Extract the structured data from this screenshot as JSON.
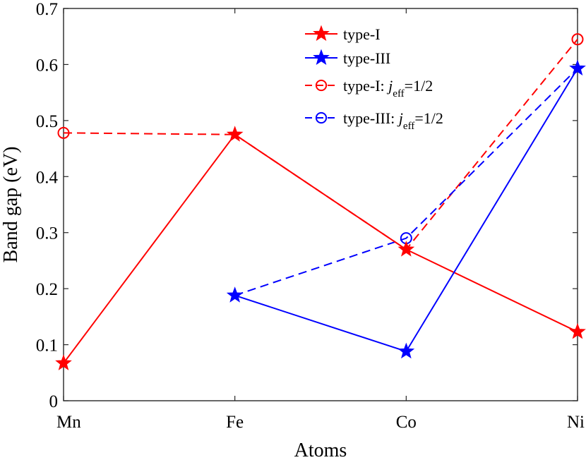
{
  "chart_data": {
    "type": "line",
    "categories": [
      "Mn",
      "Fe",
      "Co",
      "Ni"
    ],
    "xlabel": "Atoms",
    "ylabel": "Band gap (eV)",
    "ylim": [
      0,
      0.7
    ],
    "yticks": [
      "0",
      "0.1",
      "0.2",
      "0.3",
      "0.4",
      "0.5",
      "0.6",
      "0.7"
    ],
    "grid": false,
    "legend_position": "top-right",
    "series": [
      {
        "name": "type-I",
        "x": [
          "Mn",
          "Fe",
          "Co",
          "Ni"
        ],
        "values": [
          0.067,
          0.475,
          0.27,
          0.123
        ],
        "color": "#ff0000",
        "marker": "star",
        "line": "solid"
      },
      {
        "name": "type-III",
        "x": [
          "Fe",
          "Co",
          "Ni"
        ],
        "values": [
          0.188,
          0.088,
          0.593
        ],
        "color": "#0000ff",
        "marker": "star",
        "line": "solid"
      },
      {
        "name": "type-I: j_eff=1/2",
        "label_parts": [
          "type-I: ",
          "j",
          "eff",
          "=1/2"
        ],
        "x": [
          "Mn",
          "Fe",
          "Co",
          "Ni"
        ],
        "values": [
          0.478,
          0.475,
          0.27,
          0.645
        ],
        "color": "#ff0000",
        "marker": "circle",
        "line": "dashed",
        "marker_points": [
          0,
          3
        ]
      },
      {
        "name": "type-III: j_eff=1/2",
        "label_parts": [
          "type-III: ",
          "j",
          "eff",
          "=1/2"
        ],
        "x": [
          "Fe",
          "Co",
          "Ni"
        ],
        "values": [
          0.188,
          0.29,
          0.593
        ],
        "color": "#0000ff",
        "marker": "circle",
        "line": "dashed",
        "marker_points": [
          1
        ]
      }
    ]
  }
}
